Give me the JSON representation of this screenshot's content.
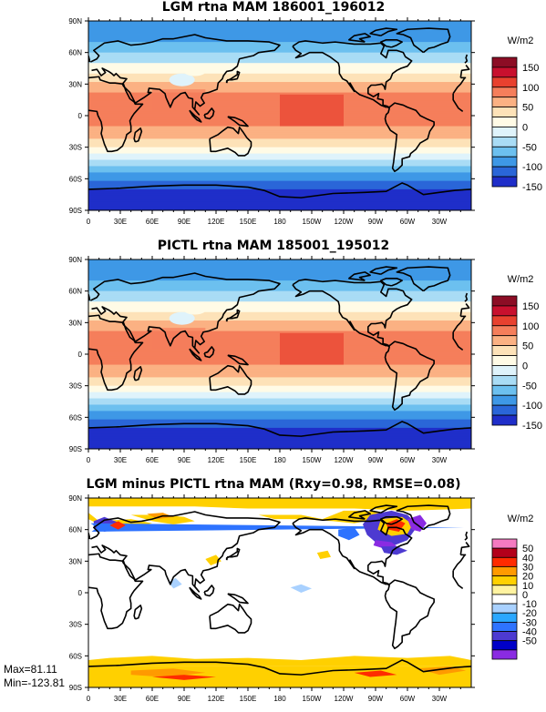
{
  "chart_data": [
    {
      "type": "heatmap",
      "title": "LGM rtna MAM 186001_196012",
      "x_ticks": [
        "0",
        "30E",
        "60E",
        "90E",
        "120E",
        "150E",
        "180",
        "150W",
        "120W",
        "90W",
        "60W",
        "30W"
      ],
      "y_ticks": [
        "90N",
        "60N",
        "30N",
        "0",
        "30S",
        "60S",
        "90S"
      ],
      "colorbar_label": "W/m2",
      "colorbar_ticks": [
        "150",
        "100",
        "50",
        "0",
        "-50",
        "-100",
        "-150"
      ],
      "colorbar_colors": [
        "#8c0d25",
        "#c8102e",
        "#e8412f",
        "#f57e5b",
        "#fbb183",
        "#fde2b8",
        "#fffbe6",
        "#dff3fb",
        "#a9dcf5",
        "#6cc0ef",
        "#3e98e6",
        "#2a66d8",
        "#1f2ec9"
      ]
    },
    {
      "type": "heatmap",
      "title": "PICTL rtna MAM 185001_195012",
      "x_ticks": [
        "0",
        "30E",
        "60E",
        "90E",
        "120E",
        "150E",
        "180",
        "150W",
        "120W",
        "90W",
        "60W",
        "30W"
      ],
      "y_ticks": [
        "90N",
        "60N",
        "30N",
        "0",
        "30S",
        "60S",
        "90S"
      ],
      "colorbar_label": "W/m2",
      "colorbar_ticks": [
        "150",
        "100",
        "50",
        "0",
        "-50",
        "-100",
        "-150"
      ],
      "colorbar_colors": [
        "#8c0d25",
        "#c8102e",
        "#e8412f",
        "#f57e5b",
        "#fbb183",
        "#fde2b8",
        "#fffbe6",
        "#dff3fb",
        "#a9dcf5",
        "#6cc0ef",
        "#3e98e6",
        "#2a66d8",
        "#1f2ec9"
      ]
    },
    {
      "type": "heatmap",
      "title": "LGM minus PICTL rtna MAM (Rxy=0.98, RMSE=0.08)",
      "x_ticks": [
        "0",
        "30E",
        "60E",
        "90E",
        "120E",
        "150E",
        "180",
        "150W",
        "120W",
        "90W",
        "60W",
        "30W"
      ],
      "y_ticks": [
        "90N",
        "60N",
        "30N",
        "0",
        "30S",
        "60S",
        "90S"
      ],
      "colorbar_label": "W/m2",
      "colorbar_ticks": [
        "50",
        "40",
        "30",
        "20",
        "10",
        "0",
        "-10",
        "-20",
        "-30",
        "-40",
        "-50"
      ],
      "colorbar_colors": [
        "#f47ac1",
        "#b3001b",
        "#ff2b00",
        "#ff9a00",
        "#ffd000",
        "#fff3a0",
        "#ffffff",
        "#a9d1ff",
        "#2aa7ff",
        "#2e73ff",
        "#4d3ad1",
        "#0000c8",
        "#8a2be2"
      ],
      "max_label": "Max=81.11",
      "min_label": "Min=-123.81"
    }
  ]
}
